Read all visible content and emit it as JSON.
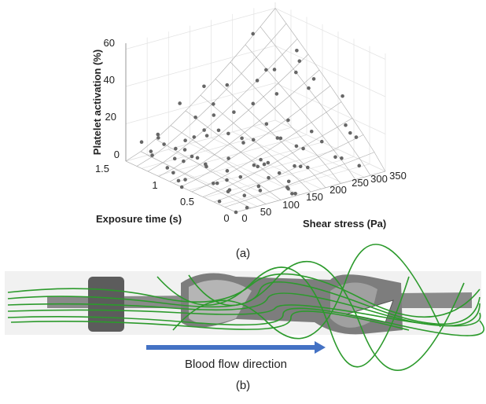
{
  "panel_a": {
    "z_axis_label": "Platelet activation (%)",
    "z_ticks": [
      "60",
      "40",
      "20",
      "0"
    ],
    "x_axis_label": "Exposure time (s)",
    "x_ticks": [
      "1.5",
      "1",
      "0.5",
      "0"
    ],
    "y_axis_label": "Shear stress (Pa)",
    "y_ticks": [
      "0",
      "50",
      "100",
      "150",
      "200",
      "250",
      "300",
      "350"
    ],
    "caption": "(a)"
  },
  "panel_b": {
    "arrow_label": "Blood flow direction",
    "caption": "(b)"
  }
}
